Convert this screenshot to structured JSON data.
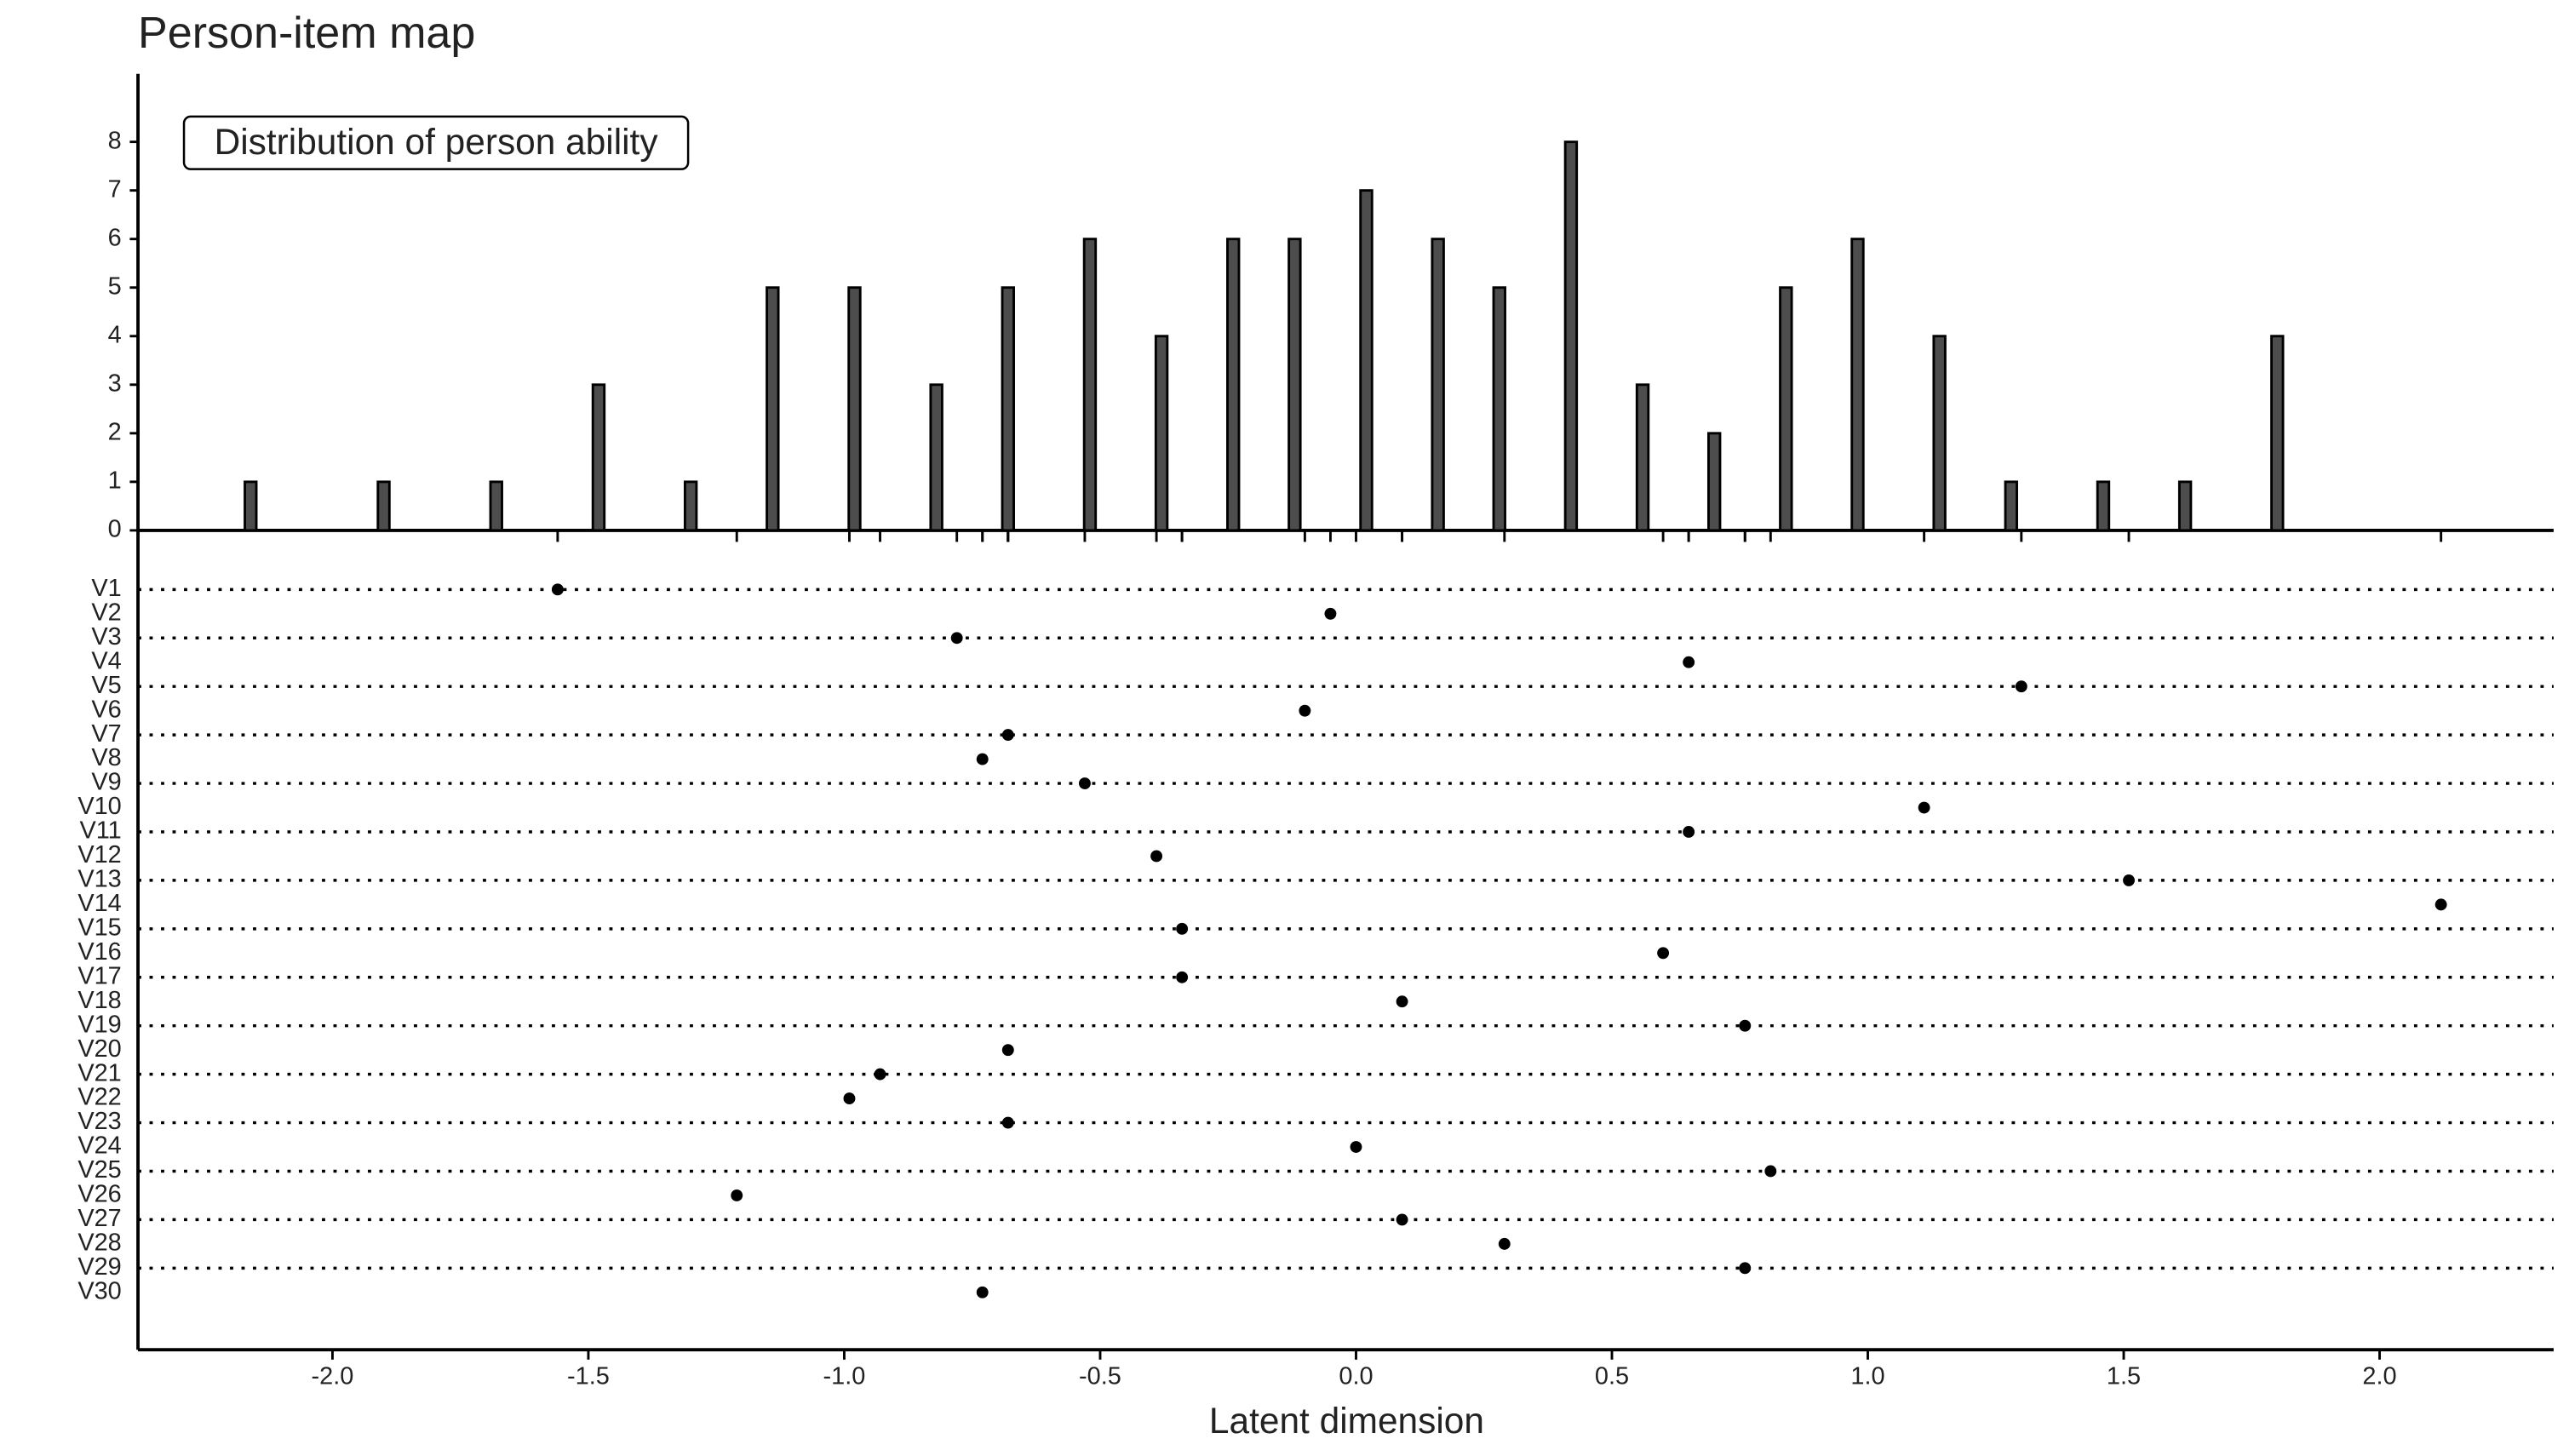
{
  "chart_data": [
    {
      "type": "bar",
      "title": "Person-item map",
      "annotation": "Distribution of person ability",
      "x": [
        -2.16,
        -1.9,
        -1.68,
        -1.48,
        -1.3,
        -1.14,
        -0.98,
        -0.82,
        -0.68,
        -0.52,
        -0.38,
        -0.24,
        -0.12,
        0.02,
        0.16,
        0.28,
        0.42,
        0.56,
        0.7,
        0.84,
        0.98,
        1.14,
        1.28,
        1.46,
        1.62,
        1.8
      ],
      "values": [
        1,
        1,
        1,
        3,
        1,
        5,
        5,
        3,
        5,
        6,
        4,
        6,
        6,
        7,
        6,
        5,
        8,
        3,
        2,
        5,
        6,
        4,
        1,
        1,
        1,
        4
      ],
      "color": "#4d4d4d",
      "xlim": [
        -2.38,
        2.34
      ],
      "ylim": [
        0,
        9.4
      ],
      "yticks": [
        0,
        1,
        2,
        3,
        4,
        5,
        6,
        7,
        8
      ]
    },
    {
      "type": "dot",
      "x_label": "Latent dimension",
      "categories": [
        "V1",
        "V2",
        "V3",
        "V4",
        "V5",
        "V6",
        "V7",
        "V8",
        "V9",
        "V10",
        "V11",
        "V12",
        "V13",
        "V14",
        "V15",
        "V16",
        "V17",
        "V18",
        "V19",
        "V20",
        "V21",
        "V22",
        "V23",
        "V24",
        "V25",
        "V26",
        "V27",
        "V28",
        "V29",
        "V30"
      ],
      "values": [
        -1.56,
        -0.05,
        -0.78,
        0.65,
        1.3,
        -0.1,
        -0.68,
        -0.73,
        -0.53,
        1.11,
        0.65,
        -0.39,
        1.51,
        2.12,
        -0.34,
        0.6,
        -0.34,
        0.09,
        0.76,
        -0.68,
        -0.93,
        -0.99,
        -0.68,
        0.0,
        0.81,
        -1.21,
        0.09,
        0.29,
        0.76,
        -0.73
      ],
      "color": "#000000",
      "xlim": [
        -2.38,
        2.34
      ],
      "xticks": [
        {
          "value": -2,
          "label": "-2.0"
        },
        -1.5,
        {
          "value": -1,
          "label": "-1.0"
        },
        -0.5,
        {
          "value": 0,
          "label": "0.0"
        },
        0.5,
        {
          "value": 1,
          "label": "1.0"
        },
        1.5,
        {
          "value": 2,
          "label": "2.0"
        }
      ]
    }
  ]
}
